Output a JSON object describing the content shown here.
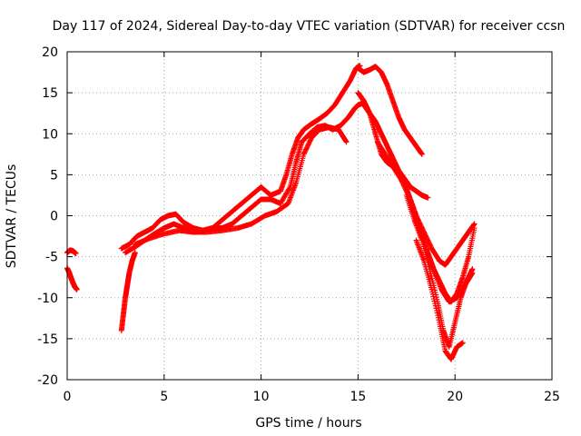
{
  "chart_data": {
    "type": "scatter",
    "title": "Day 117 of 2024, Sidereal Day-to-day VTEC variation (SDTVAR) for receiver ccsn",
    "xlabel": "GPS time / hours",
    "ylabel": "SDTVAR / TECUs",
    "xlim": [
      0,
      25
    ],
    "ylim": [
      -20,
      20
    ],
    "xticks": [
      0,
      5,
      10,
      15,
      20,
      25
    ],
    "yticks": [
      -20,
      -15,
      -10,
      -5,
      0,
      5,
      10,
      15,
      20
    ],
    "grid": true,
    "marker": "+",
    "color": "#ff0000",
    "series": [
      {
        "x": [
          0.0,
          0.15,
          0.3,
          0.45
        ],
        "y": [
          -4.5,
          -4.2,
          -4.3,
          -4.6
        ]
      },
      {
        "x": [
          0.0,
          0.1,
          0.2,
          0.3,
          0.4,
          0.5
        ],
        "y": [
          -6.4,
          -6.9,
          -7.6,
          -8.2,
          -8.7,
          -9.0
        ]
      },
      {
        "x": [
          2.8,
          2.9,
          3.0,
          3.1,
          3.2,
          3.35,
          3.5
        ],
        "y": [
          -14.0,
          -12.0,
          -10.0,
          -8.5,
          -7.0,
          -5.5,
          -4.5
        ]
      },
      {
        "x": [
          2.8,
          3.2,
          3.6,
          4.0,
          4.4,
          4.8,
          5.2,
          5.6,
          6.0,
          6.5,
          7.0,
          7.5,
          8.0,
          8.5,
          9.0,
          9.5,
          10.0,
          10.5,
          11.0,
          11.3,
          11.6,
          11.9,
          12.2,
          12.6,
          13.0,
          13.4,
          13.8,
          14.2,
          14.6,
          14.9,
          15.1
        ],
        "y": [
          -4.0,
          -3.5,
          -2.5,
          -2.0,
          -1.5,
          -0.5,
          0.0,
          0.2,
          -0.8,
          -1.5,
          -1.8,
          -1.5,
          -0.5,
          0.5,
          1.5,
          2.5,
          3.5,
          2.5,
          3.0,
          5.0,
          7.5,
          9.5,
          10.5,
          11.2,
          11.8,
          12.5,
          13.5,
          15.0,
          16.5,
          18.0,
          18.3
        ]
      },
      {
        "x": [
          3.0,
          3.5,
          4.0,
          4.5,
          5.0,
          5.5,
          6.0,
          6.5,
          7.0,
          7.5,
          8.0,
          8.5,
          9.0,
          9.5,
          10.0,
          10.5,
          11.0,
          11.5,
          11.8,
          12.1,
          12.5,
          12.9,
          13.3,
          13.7,
          14.1,
          14.5,
          14.8,
          15.0,
          15.3
        ],
        "y": [
          -4.5,
          -3.8,
          -3.0,
          -2.2,
          -1.5,
          -1.0,
          -1.5,
          -2.0,
          -1.8,
          -1.5,
          -1.5,
          -1.0,
          0.0,
          1.0,
          2.0,
          2.0,
          1.5,
          3.5,
          6.5,
          9.0,
          10.0,
          10.8,
          11.0,
          10.5,
          11.0,
          12.0,
          13.0,
          13.5,
          13.8
        ]
      },
      {
        "x": [
          3.5,
          4.2,
          5.0,
          5.8,
          6.5,
          7.2,
          8.0,
          8.8,
          9.5,
          10.2,
          10.8,
          11.4,
          11.8,
          12.2,
          12.6,
          13.0,
          13.5,
          14.0,
          14.4
        ],
        "y": [
          -3.5,
          -2.8,
          -2.2,
          -1.8,
          -2.0,
          -2.0,
          -1.8,
          -1.5,
          -1.0,
          0.0,
          0.5,
          1.5,
          4.0,
          7.5,
          9.5,
          10.5,
          10.8,
          10.5,
          9.0
        ]
      },
      {
        "x": [
          15.0,
          15.3,
          15.6,
          15.9,
          16.2,
          16.5,
          16.8,
          17.1,
          17.4,
          17.7,
          18.0,
          18.3
        ],
        "y": [
          18.0,
          17.5,
          17.8,
          18.2,
          17.5,
          16.0,
          14.0,
          12.0,
          10.5,
          9.5,
          8.5,
          7.5
        ]
      },
      {
        "x": [
          15.0,
          15.3,
          15.6,
          15.9,
          16.2,
          16.5,
          16.8,
          17.1,
          17.4,
          17.7,
          18.0,
          18.3,
          18.6
        ],
        "y": [
          15.0,
          14.0,
          12.5,
          11.5,
          10.0,
          8.5,
          7.0,
          5.5,
          4.5,
          3.5,
          3.0,
          2.5,
          2.2
        ]
      },
      {
        "x": [
          15.3,
          15.6,
          15.9,
          16.2,
          16.5,
          16.8,
          17.1,
          17.4,
          17.7,
          18.0,
          18.3,
          18.6,
          18.9,
          19.2,
          19.5,
          19.8,
          20.1,
          20.4,
          20.7,
          21.0
        ],
        "y": [
          13.5,
          12.5,
          10.0,
          7.5,
          6.5,
          6.0,
          5.0,
          4.0,
          2.0,
          0.0,
          -2.5,
          -4.5,
          -6.5,
          -8.0,
          -9.5,
          -10.5,
          -9.5,
          -7.5,
          -5.0,
          -1.5
        ]
      },
      {
        "x": [
          16.0,
          16.4,
          16.8,
          17.2,
          17.6,
          18.0,
          18.4,
          18.8,
          19.2,
          19.5,
          19.8,
          20.1,
          20.4,
          20.7,
          21.0
        ],
        "y": [
          9.0,
          7.5,
          6.0,
          4.5,
          2.5,
          0.0,
          -2.0,
          -4.0,
          -5.5,
          -6.0,
          -5.0,
          -4.0,
          -3.0,
          -2.0,
          -1.0
        ]
      },
      {
        "x": [
          17.5,
          17.9,
          18.3,
          18.7,
          19.1,
          19.4,
          19.7,
          20.0,
          20.3,
          20.6,
          20.9
        ],
        "y": [
          2.5,
          -0.5,
          -3.0,
          -6.5,
          -10.5,
          -14.0,
          -16.0,
          -13.0,
          -10.0,
          -8.0,
          -6.5
        ]
      },
      {
        "x": [
          18.0,
          18.4,
          18.8,
          19.2,
          19.5,
          19.8,
          20.1,
          20.4
        ],
        "y": [
          -3.0,
          -5.5,
          -9.0,
          -13.0,
          -16.5,
          -17.5,
          -16.0,
          -15.5
        ]
      },
      {
        "x": [
          18.5,
          18.9,
          19.3,
          19.7,
          20.1,
          20.5,
          20.9
        ],
        "y": [
          -4.0,
          -6.5,
          -9.0,
          -10.5,
          -10.0,
          -8.5,
          -7.0
        ]
      }
    ]
  }
}
